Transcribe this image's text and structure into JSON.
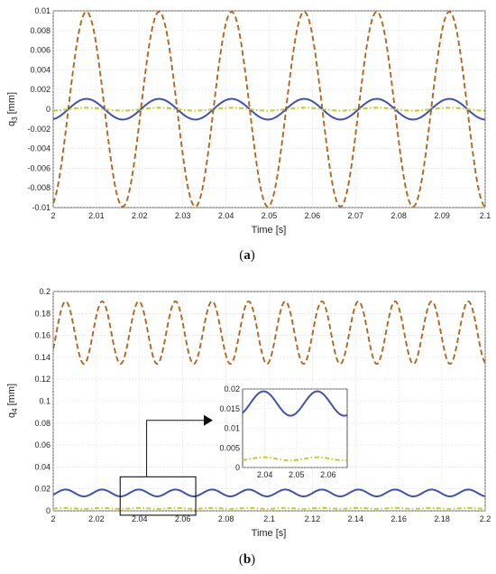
{
  "chart_data": [
    {
      "type": "line",
      "caption": "a",
      "ylabel": "q",
      "ylabel_sub": "3",
      "ylabel_unit": " [mm]",
      "xlabel": "Time [s]",
      "xlim": [
        2.0,
        2.1
      ],
      "ylim": [
        -0.01,
        0.01
      ],
      "x_ticks": [
        2,
        2.01,
        2.02,
        2.03,
        2.04,
        2.05,
        2.06,
        2.07,
        2.08,
        2.09,
        2.1
      ],
      "y_ticks": [
        -0.01,
        -0.008,
        -0.006,
        -0.004,
        -0.002,
        0,
        0.002,
        0.004,
        0.006,
        0.008,
        0.01
      ],
      "x_tick_labels": [
        "2",
        "2.01",
        "2.02",
        "2.03",
        "2.04",
        "2.05",
        "2.06",
        "2.07",
        "2.08",
        "2.09",
        "2.1"
      ],
      "y_tick_labels": [
        "-0.01",
        "-0.008",
        "-0.006",
        "-0.004",
        "-0.002",
        "0",
        "0.002",
        "0.004",
        "0.006",
        "0.008",
        "0.01"
      ],
      "grid": true,
      "series": [
        {
          "color": "#b5651d",
          "style": "dashed",
          "kind": "sine",
          "offset": 0,
          "amplitude": 0.0099,
          "period": 0.0168,
          "phase_t": 2.0035
        },
        {
          "color": "#3f51b5",
          "style": "solid",
          "kind": "sine",
          "offset": 0,
          "amplitude": 0.00105,
          "period": 0.0168,
          "phase_t": 2.0035
        },
        {
          "color": "#c8c820",
          "style": "dashdot",
          "kind": "sine",
          "offset": 0,
          "amplitude": 0.00015,
          "period": 0.0168,
          "phase_t": 2.0035
        }
      ]
    },
    {
      "type": "line",
      "caption": "b",
      "ylabel": "q",
      "ylabel_sub": "4",
      "ylabel_unit": " [mm]",
      "xlabel": "Time [s]",
      "xlim": [
        2.0,
        2.2
      ],
      "ylim": [
        0,
        0.2
      ],
      "x_ticks": [
        2,
        2.02,
        2.04,
        2.06,
        2.08,
        2.1,
        2.12,
        2.14,
        2.16,
        2.18,
        2.2
      ],
      "y_ticks": [
        0,
        0.02,
        0.04,
        0.06,
        0.08,
        0.1,
        0.12,
        0.14,
        0.16,
        0.18,
        0.2
      ],
      "x_tick_labels": [
        "2",
        "2.02",
        "2.04",
        "2.06",
        "2.08",
        "2.1",
        "2.12",
        "2.14",
        "2.16",
        "2.18",
        "2.2"
      ],
      "y_tick_labels": [
        "0",
        "0.02",
        "0.04",
        "0.06",
        "0.08",
        "0.1",
        "0.12",
        "0.14",
        "0.16",
        "0.18",
        "0.2"
      ],
      "grid": true,
      "series": [
        {
          "color": "#b5651d",
          "style": "dashed",
          "kind": "sine",
          "offset": 0.1625,
          "amplitude": 0.0285,
          "period": 0.01695,
          "phase_t": 2.0015
        },
        {
          "color": "#3f51b5",
          "style": "solid",
          "kind": "sine",
          "offset": 0.0163,
          "amplitude": 0.0031,
          "period": 0.01695,
          "phase_t": 2.0015
        },
        {
          "color": "#c8c820",
          "style": "dashdot",
          "kind": "sine",
          "offset": 0.0022,
          "amplitude": 0.0004,
          "period": 0.01695,
          "phase_t": 2.0015
        }
      ],
      "highlight_region": {
        "x": [
          2.031,
          2.066
        ],
        "y": [
          -0.004,
          0.031
        ]
      },
      "inset": {
        "xlim": [
          2.033,
          2.066
        ],
        "ylim": [
          0,
          0.02
        ],
        "x_ticks": [
          2.04,
          2.05,
          2.06
        ],
        "y_ticks": [
          0,
          0.005,
          0.01,
          0.015,
          0.02
        ],
        "x_tick_labels": [
          "2.04",
          "2.05",
          "2.06"
        ],
        "y_tick_labels": [
          "0",
          "0.005",
          "0.01",
          "0.015",
          "0.02"
        ]
      }
    }
  ]
}
